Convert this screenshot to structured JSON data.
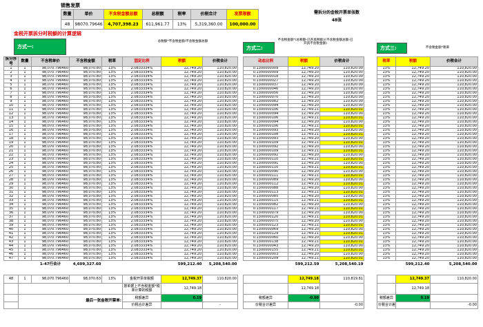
{
  "accent_colors": {
    "highlight": "#ffff00",
    "method_green": "#00b050",
    "red_text": "#e00000",
    "header_gray": "#d9d9d9"
  },
  "page": {
    "title": "销售发票",
    "red_title": "金税开票拆分时税额的计算逻辑"
  },
  "split_info": {
    "line1": "需拆分的金税开票单张数",
    "line2": "48张"
  },
  "top_table": {
    "headers": [
      "数量",
      "单价",
      "不含税金额总额",
      "总税额",
      "税率",
      "价税合计",
      "发票限额"
    ],
    "values": [
      "48",
      "98070.79646",
      "4,707,398.23",
      "611,961.77",
      "13%",
      "5,319,360.00",
      "100,000.00"
    ],
    "yellow_header_idx": [
      2,
      6
    ],
    "yellow_value_idx": [
      2,
      6
    ]
  },
  "methods": {
    "m1": {
      "label": "方式一:",
      "note": "总税额*不含税金额/不含税金额总额"
    },
    "m2": {
      "label": "方式二:",
      "note": "不含税金额*(总税额-已开具税额)/(不含税金额总额-已开具不含税金额)"
    },
    "m3": {
      "label": "方式三:",
      "note": "不含税金额*税率"
    }
  },
  "left_table": {
    "headers": [
      "拆分序号",
      "数量",
      "不含税单价",
      "不含税金额",
      "税率",
      "固定比例",
      "税额",
      "价税合计"
    ],
    "row_count": 47,
    "row": {
      "qty": "1",
      "price": "98,070.796460",
      "amount": "98,070.80",
      "rate": "13%",
      "ratio": "2.0833334%",
      "tax": "12,749.20",
      "total": "110,820.00"
    },
    "totals": {
      "label": "1-47行合计",
      "amount": "4,609,327.60",
      "tax": "599,212.40",
      "total": "5,208,540.00"
    },
    "bottom": {
      "row48": {
        "no": "48",
        "qty": "1",
        "price": "98,070.796460",
        "amount": "98,070.63",
        "rate": "13%",
        "label": "金税开票单税额",
        "tax": "12,749.37",
        "total": "110,820.00"
      },
      "calc_label": "按单据上不含税金额*税率计算的税额",
      "calc_tax": "12,749.18",
      "last_label": "最后一张金税开票单:",
      "diff_tax_label": "税额差异",
      "diff_tax": "0.19",
      "diff_total_label": "价税合计差异",
      "diff_total": "-"
    }
  },
  "middle_table": {
    "headers": [
      "动态比例",
      "税额",
      "价税合计"
    ],
    "rows": [
      [
        "0.1300000009",
        "12,749.20",
        "110,820.00",
        false
      ],
      [
        "0.1300000009",
        "12,749.20",
        "110,820.00",
        false
      ],
      [
        "0.1300000018",
        "12,749.20",
        "110,820.00",
        false
      ],
      [
        "0.1300000027",
        "12,749.20",
        "110,820.00",
        false
      ],
      [
        "0.1300000037",
        "12,749.20",
        "110,820.00",
        false
      ],
      [
        "0.1300000046",
        "12,749.20",
        "110,820.00",
        false
      ],
      [
        "0.1300000056",
        "12,749.20",
        "110,820.00",
        false
      ],
      [
        "0.1300000070",
        "12,749.20",
        "110,820.00",
        false
      ],
      [
        "0.1300000082",
        "12,749.20",
        "110,820.00",
        false
      ],
      [
        "0.1300000094",
        "12,749.20",
        "110,820.00",
        false
      ],
      [
        "0.1300000106",
        "12,749.21",
        "110,820.01",
        true
      ],
      [
        "0.1300000094",
        "12,749.20",
        "110,820.00",
        false
      ],
      [
        "0.1300000106",
        "12,749.21",
        "110,820.01",
        true
      ],
      [
        "0.1300000094",
        "12,749.20",
        "110,820.00",
        false
      ],
      [
        "0.1300000106",
        "12,749.21",
        "110,820.01",
        true
      ],
      [
        "0.1300000093",
        "12,749.20",
        "110,820.00",
        false
      ],
      [
        "0.1300000108",
        "12,749.21",
        "110,820.01",
        true
      ],
      [
        "0.1300000093",
        "12,749.20",
        "110,820.00",
        false
      ],
      [
        "0.1300000109",
        "12,749.21",
        "110,820.01",
        true
      ],
      [
        "0.1300000092",
        "12,749.20",
        "110,820.00",
        false
      ],
      [
        "0.1300000109",
        "12,749.21",
        "110,820.01",
        true
      ],
      [
        "0.1300000092",
        "12,749.20",
        "110,820.00",
        false
      ],
      [
        "0.1300000110",
        "12,749.21",
        "110,820.01",
        true
      ],
      [
        "0.1300000091",
        "12,749.20",
        "110,820.00",
        false
      ],
      [
        "0.1300000110",
        "12,749.21",
        "110,820.01",
        true
      ],
      [
        "0.1300000090",
        "12,749.20",
        "110,820.00",
        false
      ],
      [
        "0.1300000111",
        "12,749.21",
        "110,820.01",
        true
      ],
      [
        "0.1300000089",
        "12,749.20",
        "110,820.00",
        false
      ],
      [
        "0.1300000112",
        "12,749.21",
        "110,820.01",
        true
      ],
      [
        "0.1300000088",
        "12,749.20",
        "110,820.00",
        false
      ],
      [
        "0.1300000113",
        "12,749.21",
        "110,820.01",
        true
      ],
      [
        "0.1300000085",
        "12,749.20",
        "110,820.00",
        false
      ],
      [
        "0.1300000115",
        "12,749.21",
        "110,820.01",
        true
      ],
      [
        "0.1300000082",
        "12,749.20",
        "110,820.00",
        false
      ],
      [
        "0.1300000117",
        "12,749.21",
        "110,820.01",
        true
      ],
      [
        "0.1300000079",
        "12,749.20",
        "110,820.00",
        false
      ],
      [
        "0.1300000120",
        "12,749.21",
        "110,820.01",
        true
      ],
      [
        "0.1300000075",
        "12,749.20",
        "110,820.00",
        false
      ],
      [
        "0.1300000123",
        "12,749.21",
        "110,820.01",
        true
      ],
      [
        "0.1300000069",
        "12,749.20",
        "110,820.00",
        false
      ],
      [
        "0.1300000129",
        "12,749.21",
        "110,820.01",
        true
      ],
      [
        "0.1300000060",
        "12,749.20",
        "110,820.00",
        false
      ],
      [
        "0.1300000138",
        "12,749.21",
        "110,820.01",
        true
      ],
      [
        "0.1300000043",
        "12,749.20",
        "110,820.00",
        false
      ],
      [
        "0.1300000155",
        "12,749.21",
        "110,820.01",
        true
      ],
      [
        "0.1300000003",
        "12,749.20",
        "110,820.00",
        false
      ],
      [
        "0.1300000209",
        "12,749.21",
        "110,820.01",
        true
      ]
    ],
    "totals": {
      "tax": "599,212.59",
      "total": "5,208,540.19"
    },
    "bottom": {
      "tax48": "12,749.18",
      "total48": "110,819.81",
      "calc_tax": "12,749.18",
      "diff_tax_label": "税额差异",
      "diff_tax": "-0.00",
      "diff_total_label": "价税合计差异",
      "diff_total": "-0.00"
    }
  },
  "right_table": {
    "headers": [
      "税率",
      "税额",
      "价税合计"
    ],
    "row_count": 47,
    "row": {
      "rate": "13%",
      "tax": "12,749.20",
      "total": "110,820.00"
    },
    "totals": {
      "tax": "599,212.40",
      "total": "5,208,540.00"
    },
    "bottom": {
      "tax48": "12,749.37",
      "total48": "110,820.00",
      "calc_tax": "12,749.18",
      "diff_tax_label": "税额差异",
      "diff_tax": "0.19",
      "diff_total_label": "价税合计差异",
      "diff_total": "-0.00"
    }
  }
}
